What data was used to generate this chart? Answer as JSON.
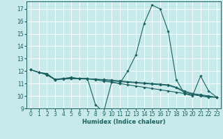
{
  "xlabel": "Humidex (Indice chaleur)",
  "xlim": [
    -0.5,
    23.5
  ],
  "ylim": [
    9,
    17.6
  ],
  "yticks": [
    9,
    10,
    11,
    12,
    13,
    14,
    15,
    16,
    17
  ],
  "xticks": [
    0,
    1,
    2,
    3,
    4,
    5,
    6,
    7,
    8,
    9,
    10,
    11,
    12,
    13,
    14,
    15,
    16,
    17,
    18,
    19,
    20,
    21,
    22,
    23
  ],
  "bg_color": "#c8eaea",
  "grid_color": "#b0d8d8",
  "line_color": "#1a6060",
  "lines": [
    [
      0,
      12.1,
      1,
      11.9,
      2,
      11.8,
      3,
      11.3,
      4,
      11.4,
      5,
      11.5,
      6,
      11.4,
      7,
      11.4,
      8,
      9.3,
      9,
      8.7,
      10,
      11.1,
      11,
      11.0,
      12,
      12.0,
      13,
      13.3,
      14,
      15.8,
      15,
      17.3,
      16,
      17.0,
      17,
      15.2,
      18,
      11.3,
      19,
      10.2,
      20,
      10.0,
      21,
      11.6,
      22,
      10.4,
      23,
      9.9
    ],
    [
      0,
      12.1,
      1,
      11.9,
      2,
      11.7,
      3,
      11.3,
      4,
      11.4,
      5,
      11.4,
      6,
      11.4,
      7,
      11.4,
      8,
      11.3,
      9,
      11.2,
      10,
      11.1,
      11,
      11.0,
      12,
      10.9,
      13,
      10.8,
      14,
      10.7,
      15,
      10.6,
      16,
      10.5,
      17,
      10.4,
      18,
      10.3,
      19,
      10.2,
      20,
      10.1,
      21,
      10.0,
      22,
      9.9,
      23,
      9.9
    ],
    [
      0,
      12.1,
      1,
      11.9,
      2,
      11.7,
      3,
      11.3,
      4,
      11.35,
      5,
      11.4,
      6,
      11.38,
      7,
      11.36,
      8,
      11.34,
      9,
      11.32,
      10,
      11.28,
      11,
      11.22,
      12,
      11.15,
      13,
      11.1,
      14,
      11.05,
      15,
      11.0,
      16,
      10.95,
      17,
      10.9,
      18,
      10.7,
      19,
      10.4,
      20,
      10.2,
      21,
      10.1,
      22,
      10.0,
      23,
      9.9
    ],
    [
      0,
      12.1,
      1,
      11.9,
      2,
      11.75,
      3,
      11.35,
      4,
      11.4,
      5,
      11.45,
      6,
      11.4,
      7,
      11.38,
      8,
      11.36,
      9,
      11.28,
      10,
      11.2,
      11,
      11.15,
      12,
      11.1,
      13,
      11.05,
      14,
      11.0,
      15,
      10.95,
      16,
      10.9,
      17,
      10.85,
      18,
      10.65,
      19,
      10.3,
      20,
      10.15,
      21,
      10.05,
      22,
      9.95,
      23,
      9.9
    ]
  ]
}
